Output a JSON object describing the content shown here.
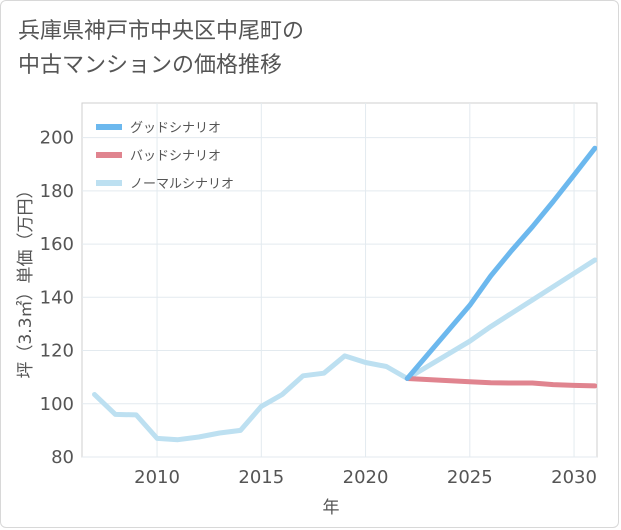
{
  "chart_data": {
    "type": "line",
    "title_lines": [
      "兵庫県神戸市中央区中尾町の",
      "中古マンションの価格推移"
    ],
    "xlabel": "年",
    "ylabel": "坪（3.3㎡）単価（万円）",
    "xlim": [
      2006.4,
      2031.1
    ],
    "ylim": [
      80,
      213
    ],
    "x_ticks": [
      2010,
      2015,
      2020,
      2025,
      2030
    ],
    "y_ticks": [
      80,
      100,
      120,
      140,
      160,
      180,
      200
    ],
    "grid": true,
    "legend_position": "top-left",
    "series": [
      {
        "name": "グッドシナリオ",
        "color": "#6cb8ee",
        "points": [
          [
            2022,
            109.5
          ],
          [
            2025,
            137.0
          ],
          [
            2026,
            148.0
          ],
          [
            2027,
            157.5
          ],
          [
            2028,
            166.5
          ],
          [
            2029,
            176.0
          ],
          [
            2030,
            186.0
          ],
          [
            2031,
            196.0
          ]
        ]
      },
      {
        "name": "バッドシナリオ",
        "color": "#e0848f",
        "points": [
          [
            2022,
            109.5
          ],
          [
            2025,
            108.3
          ],
          [
            2026,
            107.9
          ],
          [
            2027,
            107.8
          ],
          [
            2028,
            107.8
          ],
          [
            2029,
            107.2
          ],
          [
            2030,
            106.9
          ],
          [
            2031,
            106.7
          ]
        ]
      },
      {
        "name": "ノーマルシナリオ",
        "color": "#bde0f1",
        "points": [
          [
            2007,
            103.5
          ],
          [
            2008,
            96.0
          ],
          [
            2009,
            95.8
          ],
          [
            2010,
            87.0
          ],
          [
            2011,
            86.5
          ],
          [
            2012,
            87.5
          ],
          [
            2013,
            89.0
          ],
          [
            2014,
            90.0
          ],
          [
            2015,
            99.0
          ],
          [
            2016,
            103.5
          ],
          [
            2017,
            110.5
          ],
          [
            2018,
            111.5
          ],
          [
            2019,
            118.0
          ],
          [
            2020,
            115.5
          ],
          [
            2021,
            114.0
          ],
          [
            2022,
            109.5
          ],
          [
            2025,
            123.5
          ],
          [
            2026,
            129.0
          ],
          [
            2027,
            134.0
          ],
          [
            2028,
            139.0
          ],
          [
            2029,
            144.0
          ],
          [
            2030,
            149.0
          ],
          [
            2031,
            154.0
          ]
        ]
      }
    ]
  }
}
